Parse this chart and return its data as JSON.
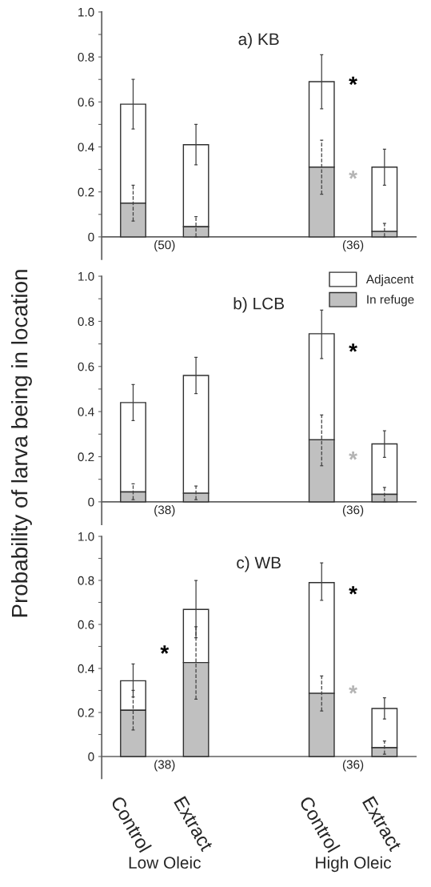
{
  "chart_data": [
    {
      "type": "bar",
      "title": "a) KB",
      "stacked": true,
      "categories": [
        null,
        null,
        null,
        null,
        null
      ],
      "ylim": [
        -0.1,
        1.0
      ],
      "yticks": [
        {
          "value": 0,
          "label": "0"
        },
        {
          "value": 0.1,
          "label": null
        },
        0.2,
        {
          "value": 0.3,
          "label": null
        },
        0.4,
        {
          "value": 0.5,
          "label": null
        },
        0.6,
        {
          "value": 0.7,
          "label": null
        },
        0.8,
        {
          "value": 0.9,
          "label": null
        },
        {
          "value": 1.0,
          "label": "1.0"
        }
      ],
      "tick_labels": "y",
      "series": [
        {
          "color": "#c0c0c0",
          "line_style": "dashed",
          "values": [
            0.15,
            0.045,
            null,
            0.31,
            0.024
          ],
          "errors": [
            [
              0.07,
              0.23
            ],
            [
              0.0,
              0.09
            ],
            null,
            [
              0.19,
              0.43
            ],
            [
              0.0,
              0.06
            ]
          ]
        },
        {
          "color": "#ffffff",
          "values": [
            0.44,
            0.365,
            null,
            0.38,
            0.286
          ],
          "errors": [
            [
              0.48,
              0.7
            ],
            [
              0.32,
              0.5
            ],
            null,
            [
              0.57,
              0.81
            ],
            [
              0.23,
              0.39
            ]
          ]
        }
      ],
      "annotations": [
        "(50)",
        "(36)",
        "*",
        "*"
      ]
    },
    {
      "type": "bar",
      "title": "b) LCB",
      "stacked": true,
      "ylabel": "Probability of larva being in location",
      "categories": [
        null,
        null,
        null,
        null,
        null
      ],
      "ylim": [
        -0.1,
        1.0
      ],
      "yticks": [
        {
          "value": 0,
          "label": "0"
        },
        {
          "value": 0.1,
          "label": null
        },
        0.2,
        {
          "value": 0.3,
          "label": null
        },
        0.4,
        {
          "value": 0.5,
          "label": null
        },
        0.6,
        {
          "value": 0.7,
          "label": null
        },
        0.8,
        {
          "value": 0.9,
          "label": null
        },
        {
          "value": 1.0,
          "label": "1.0"
        }
      ],
      "tick_labels": "y",
      "legend": "top right",
      "series": [
        {
          "name": "In refuge",
          "color": "#c0c0c0",
          "line_style": "dashed",
          "values": [
            0.044,
            0.038,
            null,
            0.275,
            0.033
          ],
          "errors": [
            [
              0.01,
              0.08
            ],
            [
              0.01,
              0.07
            ],
            null,
            [
              0.16,
              0.385
            ],
            [
              0.0,
              0.064
            ]
          ]
        },
        {
          "name": "Adjacent",
          "color": "#ffffff",
          "values": [
            0.396,
            0.522,
            null,
            0.47,
            0.224
          ],
          "errors": [
            [
              0.36,
              0.52
            ],
            [
              0.48,
              0.64
            ],
            null,
            [
              0.635,
              0.85
            ],
            [
              0.197,
              0.315
            ]
          ]
        }
      ],
      "annotations": [
        "(38)",
        "(36)",
        "*",
        "*"
      ]
    },
    {
      "type": "bar",
      "title": "c) WB",
      "stacked": true,
      "categories": [
        "Control",
        "Extract",
        null,
        "Control",
        "Extract"
      ],
      "ylim": [
        -0.1,
        1.0
      ],
      "yticks": [
        {
          "value": 0,
          "label": "0"
        },
        {
          "value": 0.1,
          "label": null
        },
        0.2,
        {
          "value": 0.3,
          "label": null
        },
        0.4,
        {
          "value": 0.5,
          "label": null
        },
        0.6,
        {
          "value": 0.7,
          "label": null
        },
        0.8,
        {
          "value": 0.9,
          "label": null
        },
        {
          "value": 1.0,
          "label": "1.0"
        }
      ],
      "series": [
        {
          "color": "#c0c0c0",
          "line_style": "dashed",
          "values": [
            0.21,
            0.427,
            null,
            0.287,
            0.04
          ],
          "errors": [
            [
              0.12,
              0.3
            ],
            [
              0.26,
              0.59
            ],
            null,
            [
              0.207,
              0.366
            ],
            [
              0.01,
              0.07
            ]
          ]
        },
        {
          "color": "#ffffff",
          "values": [
            0.134,
            0.241,
            null,
            0.503,
            0.178
          ],
          "errors": [
            [
              0.27,
              0.42
            ],
            [
              0.54,
              0.8
            ],
            null,
            [
              0.71,
              0.88
            ],
            [
              0.17,
              0.267
            ]
          ]
        }
      ],
      "annotations": [
        "(38)",
        "(36)",
        "Low Oleic",
        "High Oleic",
        "*",
        "*",
        "*"
      ]
    }
  ]
}
